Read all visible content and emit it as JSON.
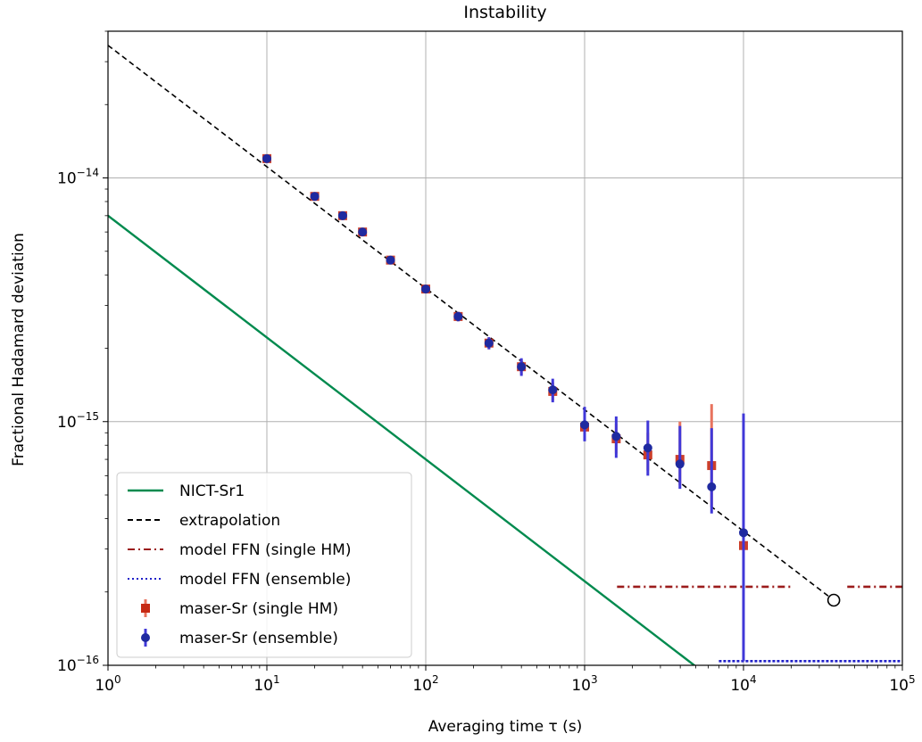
{
  "chart_data": {
    "type": "scatter",
    "title": "Instability",
    "xlabel": "Averaging time τ  (s)",
    "ylabel": "Fractional Hadamard deviation",
    "x_scale": "log",
    "y_scale": "log",
    "xlim": [
      1,
      100000
    ],
    "ylim": [
      1e-16,
      4e-14
    ],
    "grid": true,
    "legend_position": "lower-left",
    "x_ticks": [
      {
        "value": 1,
        "base": "10",
        "exp": "0"
      },
      {
        "value": 10,
        "base": "10",
        "exp": "1"
      },
      {
        "value": 100,
        "base": "10",
        "exp": "2"
      },
      {
        "value": 1000,
        "base": "10",
        "exp": "3"
      },
      {
        "value": 10000,
        "base": "10",
        "exp": "4"
      },
      {
        "value": 100000,
        "base": "10",
        "exp": "5"
      }
    ],
    "y_ticks": [
      {
        "value": 1e-14,
        "base": "10",
        "exp": "−14"
      },
      {
        "value": 1e-15,
        "base": "10",
        "exp": "−15"
      },
      {
        "value": 1e-16,
        "base": "10",
        "exp": "−16"
      }
    ],
    "series": [
      {
        "name": "NICT-Sr1",
        "kind": "line",
        "color": "#008a4e",
        "dash": "solid",
        "x": [
          1,
          5000
        ],
        "y": [
          7e-15,
          9.9e-17
        ]
      },
      {
        "name": "extrapolation",
        "kind": "line",
        "color": "#000000",
        "dash": "dashed",
        "x": [
          1,
          37000
        ],
        "y": [
          3.5e-14,
          1.85e-16
        ]
      },
      {
        "name": "model FFN (single HM)",
        "kind": "segments",
        "color": "#9b1c1c",
        "dash": "dashdot",
        "segments": [
          {
            "x": [
              1600,
              20000
            ],
            "y": [
              2.1e-16,
              2.1e-16
            ]
          },
          {
            "x": [
              45000,
              100000
            ],
            "y": [
              2.1e-16,
              2.1e-16
            ]
          }
        ]
      },
      {
        "name": "model FFN (ensemble)",
        "kind": "segments",
        "color": "#1f1fc8",
        "dash": "dotted",
        "segments": [
          {
            "x": [
              7000,
              100000
            ],
            "y": [
              1.04e-16,
              1.04e-16
            ]
          }
        ]
      },
      {
        "name": "maser-Sr (single HM)",
        "kind": "errorbar",
        "marker": "square",
        "color": "#c62a14",
        "bar_color": "#e8735e",
        "x": [
          10,
          20,
          30,
          40,
          60,
          100,
          160,
          250,
          400,
          630,
          1000,
          1580,
          2500,
          3980,
          6300,
          10000
        ],
        "y": [
          1.2e-14,
          8.4e-15,
          7e-15,
          6e-15,
          4.6e-15,
          3.5e-15,
          2.7e-15,
          2.1e-15,
          1.68e-15,
          1.33e-15,
          9.5e-16,
          8.5e-16,
          7.3e-16,
          7e-16,
          6.6e-16,
          3.1e-16
        ],
        "yerr_low": [
          1.17e-14,
          8.2e-15,
          6.8e-15,
          5.8e-15,
          4.45e-15,
          3.38e-15,
          2.58e-15,
          1.98e-15,
          1.56e-15,
          1.22e-15,
          8.6e-16,
          7.4e-16,
          6.3e-16,
          5.5e-16,
          4.5e-16,
          2.2e-16
        ],
        "yerr_high": [
          1.23e-14,
          8.6e-15,
          7.2e-15,
          6.2e-15,
          4.75e-15,
          3.62e-15,
          2.82e-15,
          2.22e-15,
          1.8e-15,
          1.45e-15,
          1.05e-15,
          9.8e-16,
          9e-16,
          1e-15,
          1.18e-15,
          4.2e-16
        ]
      },
      {
        "name": "maser-Sr (ensemble)",
        "kind": "errorbar",
        "marker": "circle",
        "color": "#1f2aa0",
        "bar_color": "#4038d8",
        "x": [
          10,
          20,
          30,
          40,
          60,
          100,
          160,
          250,
          400,
          630,
          1000,
          1580,
          2500,
          3980,
          6300,
          10000
        ],
        "y": [
          1.2e-14,
          8.4e-15,
          7e-15,
          6e-15,
          4.6e-15,
          3.5e-15,
          2.7e-15,
          2.1e-15,
          1.68e-15,
          1.35e-15,
          9.7e-16,
          8.7e-16,
          7.8e-16,
          6.7e-16,
          5.4e-16,
          3.5e-16
        ],
        "yerr_low": [
          1.17e-14,
          8.2e-15,
          6.8e-15,
          5.8e-15,
          4.45e-15,
          3.38e-15,
          2.58e-15,
          1.98e-15,
          1.54e-15,
          1.2e-15,
          8.3e-16,
          7.1e-16,
          6e-16,
          5.3e-16,
          4.2e-16,
          1.04e-16
        ],
        "yerr_high": [
          1.23e-14,
          8.6e-15,
          7.2e-15,
          6.2e-15,
          4.75e-15,
          3.62e-15,
          2.82e-15,
          2.22e-15,
          1.82e-15,
          1.5e-15,
          1.15e-15,
          1.05e-15,
          1.01e-15,
          9.6e-16,
          9.4e-16,
          1.08e-15
        ]
      }
    ],
    "annotations": [
      {
        "type": "open-circle-marker",
        "x": 37000,
        "y": 1.85e-16,
        "color": "#000000"
      }
    ]
  }
}
